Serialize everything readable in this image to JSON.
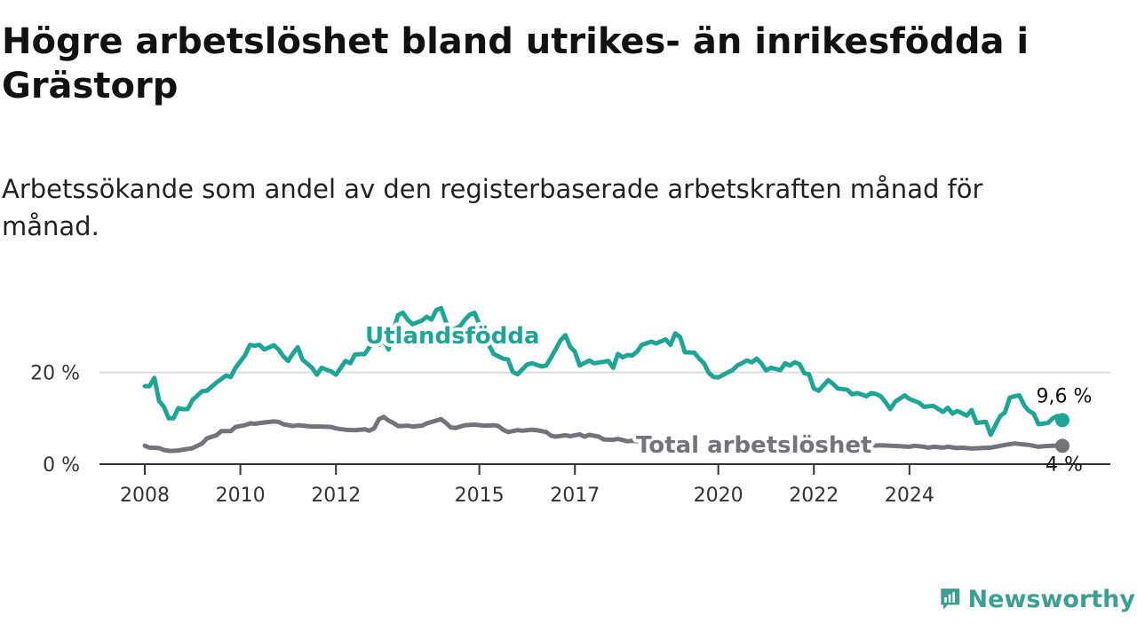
{
  "chart_data": {
    "type": "line",
    "title": "Högre arbetslöshet bland utrikes- än inrikesfödda i Grästorp",
    "subtitle": "Arbetssökande som andel av den registerbaserade arbetskraften månad för månad.",
    "x_tick_labels": [
      "2008",
      "2010",
      "2012",
      "2015",
      "2017",
      "2020",
      "2022",
      "2024"
    ],
    "y_tick_labels": [
      "0 %",
      "20 %"
    ],
    "ylim": [
      0,
      35
    ],
    "grid": true,
    "series": [
      {
        "name": "Utlandsfödda",
        "color": "#1fa596",
        "end_label": "9,6 %",
        "points": [
          [
            2008.0,
            17.0
          ],
          [
            2008.1,
            17.0
          ],
          [
            2008.2,
            18.8
          ],
          [
            2008.3,
            13.8
          ],
          [
            2008.4,
            12.5
          ],
          [
            2008.5,
            10.0
          ],
          [
            2008.6,
            10.0
          ],
          [
            2008.7,
            12.2
          ],
          [
            2008.8,
            12.0
          ],
          [
            2008.9,
            12.0
          ],
          [
            2009.0,
            14.0
          ],
          [
            2009.2,
            15.9
          ],
          [
            2009.3,
            16.0
          ],
          [
            2009.5,
            17.8
          ],
          [
            2009.7,
            19.3
          ],
          [
            2009.8,
            19.0
          ],
          [
            2009.9,
            21.0
          ],
          [
            2010.1,
            23.8
          ],
          [
            2010.2,
            26.0
          ],
          [
            2010.3,
            25.8
          ],
          [
            2010.4,
            26.0
          ],
          [
            2010.5,
            25.0
          ],
          [
            2010.7,
            25.9
          ],
          [
            2010.8,
            25.0
          ],
          [
            2010.9,
            23.5
          ],
          [
            2011.0,
            22.5
          ],
          [
            2011.1,
            24.1
          ],
          [
            2011.2,
            25.5
          ],
          [
            2011.3,
            22.8
          ],
          [
            2011.5,
            21.0
          ],
          [
            2011.6,
            19.5
          ],
          [
            2011.7,
            21.0
          ],
          [
            2011.9,
            20.2
          ],
          [
            2012.0,
            19.5
          ],
          [
            2012.2,
            22.5
          ],
          [
            2012.3,
            22.0
          ],
          [
            2012.4,
            23.9
          ],
          [
            2012.6,
            24.0
          ],
          [
            2012.7,
            25.5
          ],
          [
            2012.8,
            27.1
          ],
          [
            2012.9,
            26.0
          ],
          [
            2013.0,
            27.0
          ],
          [
            2013.1,
            25.0
          ],
          [
            2013.2,
            29.1
          ],
          [
            2013.3,
            32.5
          ],
          [
            2013.4,
            33.0
          ],
          [
            2013.5,
            31.5
          ],
          [
            2013.6,
            30.5
          ],
          [
            2013.8,
            31.3
          ],
          [
            2013.9,
            32.1
          ],
          [
            2014.0,
            31.5
          ],
          [
            2014.1,
            33.6
          ],
          [
            2014.2,
            34.0
          ],
          [
            2014.3,
            31.0
          ],
          [
            2014.4,
            29.0
          ],
          [
            2014.6,
            30.1
          ],
          [
            2014.7,
            31.5
          ],
          [
            2014.8,
            32.6
          ],
          [
            2014.9,
            33.0
          ],
          [
            2015.0,
            30.5
          ],
          [
            2015.1,
            29.0
          ],
          [
            2015.2,
            26.0
          ],
          [
            2015.3,
            24.0
          ],
          [
            2015.5,
            23.0
          ],
          [
            2015.6,
            22.8
          ],
          [
            2015.7,
            20.1
          ],
          [
            2015.8,
            19.6
          ],
          [
            2016.0,
            21.7
          ],
          [
            2016.1,
            22.0
          ],
          [
            2016.3,
            21.3
          ],
          [
            2016.4,
            21.5
          ],
          [
            2016.5,
            23.2
          ],
          [
            2016.7,
            27.0
          ],
          [
            2016.8,
            28.1
          ],
          [
            2016.9,
            25.6
          ],
          [
            2017.0,
            24.5
          ],
          [
            2017.1,
            21.5
          ],
          [
            2017.3,
            22.6
          ],
          [
            2017.4,
            22.0
          ],
          [
            2017.6,
            22.3
          ],
          [
            2017.7,
            22.5
          ],
          [
            2017.8,
            21.0
          ],
          [
            2017.9,
            24.0
          ],
          [
            2018.0,
            23.3
          ],
          [
            2018.1,
            23.8
          ],
          [
            2018.2,
            23.7
          ],
          [
            2018.3,
            24.5
          ],
          [
            2018.4,
            26.0
          ],
          [
            2018.6,
            26.7
          ],
          [
            2018.7,
            26.3
          ],
          [
            2018.9,
            27.2
          ],
          [
            2019.0,
            26.0
          ],
          [
            2019.1,
            28.5
          ],
          [
            2019.2,
            27.7
          ],
          [
            2019.3,
            24.4
          ],
          [
            2019.5,
            24.3
          ],
          [
            2019.6,
            23.0
          ],
          [
            2019.7,
            22.0
          ],
          [
            2019.8,
            19.9
          ],
          [
            2019.9,
            19.0
          ],
          [
            2020.0,
            18.9
          ],
          [
            2020.2,
            20.0
          ],
          [
            2020.3,
            20.5
          ],
          [
            2020.4,
            21.5
          ],
          [
            2020.6,
            22.6
          ],
          [
            2020.7,
            22.2
          ],
          [
            2020.8,
            23.0
          ],
          [
            2020.9,
            22.0
          ],
          [
            2021.0,
            20.4
          ],
          [
            2021.1,
            21.0
          ],
          [
            2021.3,
            20.5
          ],
          [
            2021.4,
            22.0
          ],
          [
            2021.5,
            21.5
          ],
          [
            2021.6,
            22.2
          ],
          [
            2021.7,
            21.8
          ],
          [
            2021.8,
            19.8
          ],
          [
            2021.9,
            19.6
          ],
          [
            2022.0,
            16.5
          ],
          [
            2022.1,
            16.0
          ],
          [
            2022.3,
            18.3
          ],
          [
            2022.4,
            17.5
          ],
          [
            2022.5,
            16.5
          ],
          [
            2022.7,
            16.2
          ],
          [
            2022.8,
            15.2
          ],
          [
            2022.9,
            15.5
          ],
          [
            2023.0,
            15.2
          ],
          [
            2023.1,
            14.8
          ],
          [
            2023.2,
            15.5
          ],
          [
            2023.3,
            15.3
          ],
          [
            2023.4,
            14.8
          ],
          [
            2023.5,
            13.5
          ],
          [
            2023.6,
            12.0
          ],
          [
            2023.7,
            13.6
          ],
          [
            2023.8,
            14.3
          ],
          [
            2023.9,
            15.0
          ],
          [
            2024.0,
            14.2
          ],
          [
            2024.2,
            13.4
          ],
          [
            2024.3,
            12.5
          ],
          [
            2024.5,
            12.7
          ],
          [
            2024.7,
            11.4
          ],
          [
            2024.8,
            12.3
          ],
          [
            2024.9,
            11.0
          ],
          [
            2025.0,
            11.6
          ],
          [
            2025.2,
            10.6
          ],
          [
            2025.3,
            11.8
          ],
          [
            2025.4,
            9.0
          ],
          [
            2025.6,
            9.2
          ],
          [
            2025.7,
            6.4
          ],
          [
            2025.8,
            8.5
          ],
          [
            2025.9,
            10.5
          ],
          [
            2026.0,
            11.3
          ],
          [
            2026.1,
            14.5
          ],
          [
            2026.2,
            14.8
          ],
          [
            2026.3,
            15.0
          ],
          [
            2026.4,
            12.8
          ],
          [
            2026.5,
            11.6
          ],
          [
            2026.6,
            11.0
          ],
          [
            2026.7,
            8.7
          ],
          [
            2026.9,
            9.0
          ],
          [
            2027.0,
            10.0
          ],
          [
            2027.1,
            10.5
          ],
          [
            2027.2,
            9.6
          ]
        ]
      },
      {
        "name": "Total arbetslöshet",
        "color": "#75727b",
        "end_label": "4 %",
        "points": [
          [
            2008.0,
            4.0
          ],
          [
            2008.1,
            3.6
          ],
          [
            2008.3,
            3.5
          ],
          [
            2008.4,
            3.1
          ],
          [
            2008.5,
            2.9
          ],
          [
            2008.6,
            2.9
          ],
          [
            2008.7,
            3.0
          ],
          [
            2008.9,
            3.3
          ],
          [
            2009.0,
            3.5
          ],
          [
            2009.2,
            4.5
          ],
          [
            2009.3,
            5.6
          ],
          [
            2009.5,
            6.3
          ],
          [
            2009.6,
            7.2
          ],
          [
            2009.8,
            7.2
          ],
          [
            2009.9,
            8.1
          ],
          [
            2010.1,
            8.5
          ],
          [
            2010.2,
            8.9
          ],
          [
            2010.3,
            8.8
          ],
          [
            2010.5,
            9.1
          ],
          [
            2010.7,
            9.3
          ],
          [
            2010.8,
            9.2
          ],
          [
            2010.9,
            8.7
          ],
          [
            2011.1,
            8.3
          ],
          [
            2011.2,
            8.5
          ],
          [
            2011.3,
            8.4
          ],
          [
            2011.5,
            8.2
          ],
          [
            2011.7,
            8.2
          ],
          [
            2011.9,
            8.1
          ],
          [
            2012.0,
            7.8
          ],
          [
            2012.2,
            7.5
          ],
          [
            2012.4,
            7.4
          ],
          [
            2012.6,
            7.6
          ],
          [
            2012.7,
            7.3
          ],
          [
            2012.8,
            7.8
          ],
          [
            2012.9,
            9.8
          ],
          [
            2013.0,
            10.3
          ],
          [
            2013.1,
            9.5
          ],
          [
            2013.2,
            9.0
          ],
          [
            2013.3,
            8.3
          ],
          [
            2013.5,
            8.4
          ],
          [
            2013.6,
            8.2
          ],
          [
            2013.8,
            8.4
          ],
          [
            2013.9,
            8.9
          ],
          [
            2014.1,
            9.5
          ],
          [
            2014.2,
            9.8
          ],
          [
            2014.3,
            9.0
          ],
          [
            2014.4,
            8.0
          ],
          [
            2014.5,
            7.9
          ],
          [
            2014.7,
            8.5
          ],
          [
            2014.9,
            8.6
          ],
          [
            2015.1,
            8.4
          ],
          [
            2015.3,
            8.5
          ],
          [
            2015.4,
            8.3
          ],
          [
            2015.5,
            7.5
          ],
          [
            2015.6,
            7.0
          ],
          [
            2015.8,
            7.4
          ],
          [
            2015.9,
            7.3
          ],
          [
            2016.1,
            7.5
          ],
          [
            2016.2,
            7.4
          ],
          [
            2016.4,
            7.0
          ],
          [
            2016.5,
            6.2
          ],
          [
            2016.6,
            6.0
          ],
          [
            2016.8,
            6.3
          ],
          [
            2016.9,
            6.1
          ],
          [
            2017.1,
            6.5
          ],
          [
            2017.2,
            6.0
          ],
          [
            2017.3,
            6.4
          ],
          [
            2017.5,
            6.0
          ],
          [
            2017.6,
            5.4
          ],
          [
            2017.8,
            5.3
          ],
          [
            2017.9,
            5.5
          ],
          [
            2018.1,
            5.0
          ],
          [
            2018.2,
            5.1
          ],
          [
            2018.3,
            5.0
          ],
          [
            2018.4,
            5.1
          ],
          [
            2023.0,
            4.3
          ],
          [
            2023.2,
            4.0
          ],
          [
            2023.4,
            4.1
          ],
          [
            2023.6,
            4.0
          ],
          [
            2023.8,
            3.9
          ],
          [
            2024.0,
            3.8
          ],
          [
            2024.1,
            4.0
          ],
          [
            2024.3,
            3.8
          ],
          [
            2024.4,
            3.6
          ],
          [
            2024.5,
            3.8
          ],
          [
            2024.7,
            3.6
          ],
          [
            2024.8,
            3.8
          ],
          [
            2025.0,
            3.5
          ],
          [
            2025.1,
            3.6
          ],
          [
            2025.3,
            3.4
          ],
          [
            2025.5,
            3.5
          ],
          [
            2025.7,
            3.6
          ],
          [
            2025.8,
            3.8
          ],
          [
            2026.0,
            4.2
          ],
          [
            2026.2,
            4.5
          ],
          [
            2026.3,
            4.4
          ],
          [
            2026.5,
            4.2
          ],
          [
            2026.7,
            3.8
          ],
          [
            2026.8,
            3.9
          ],
          [
            2027.0,
            4.0
          ],
          [
            2027.2,
            4.0
          ]
        ]
      }
    ]
  },
  "branding": {
    "logo_text": "Newsworthy",
    "logo_color": "#3d9e94"
  }
}
